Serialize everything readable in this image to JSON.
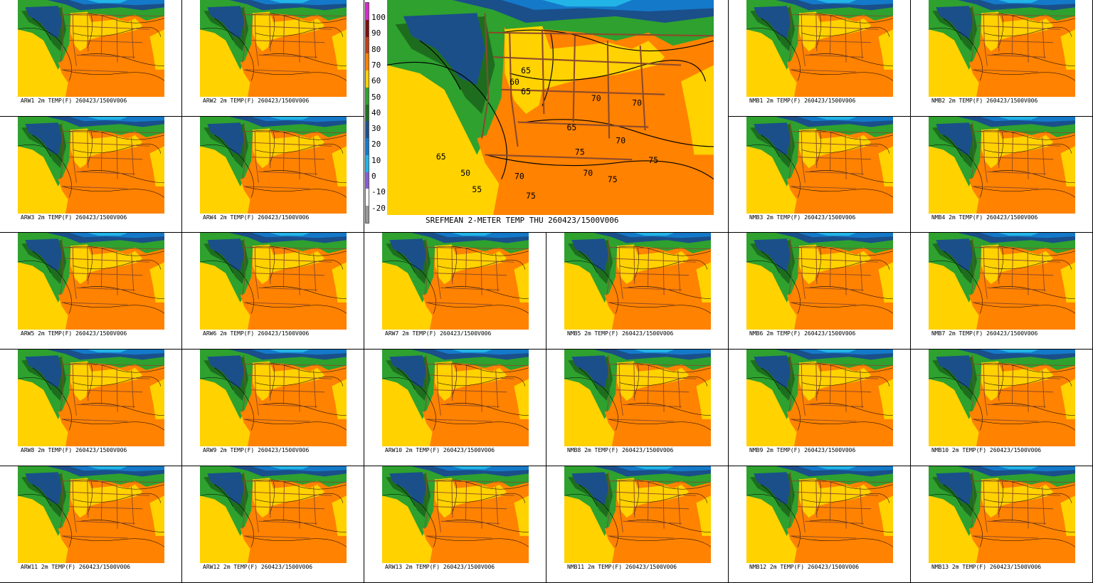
{
  "colors": {
    "c100": "#d52ac9",
    "c90": "#7a0f0f",
    "c80": "#b8401a",
    "c70": "#ff8200",
    "c60": "#ffd200",
    "c50": "#2ea12e",
    "c40": "#1e6d1e",
    "c30": "#1a4f8a",
    "c20": "#1479c8",
    "c10": "#22b4e6",
    "c0": "#8a5cd6",
    "cm10": "#ffffff",
    "cm20": "#9a9a9a",
    "borders": "#8b4a2b"
  },
  "legend": {
    "labels": [
      "100",
      "90",
      "80",
      "70",
      "60",
      "50",
      "40",
      "30",
      "20",
      "10",
      "0",
      "-10",
      "-20"
    ]
  },
  "mean": {
    "caption": "SREFMEAN 2-METER TEMP THU 260423/1500V006"
  },
  "members": [
    {
      "caption": "ARW1 2m TEMP(F) 260423/1500V006"
    },
    {
      "caption": "ARW2 2m TEMP(F) 260423/1500V006"
    },
    {
      "caption": "NMB1 2m TEMP(F) 260423/1500V006"
    },
    {
      "caption": "NMB2 2m TEMP(F) 260423/1500V006"
    },
    {
      "caption": "ARW3 2m TEMP(F) 260423/1500V006"
    },
    {
      "caption": "ARW4 2m TEMP(F) 260423/1500V006"
    },
    {
      "caption": "NMB3 2m TEMP(F) 260423/1500V006"
    },
    {
      "caption": "NMB4 2m TEMP(F) 260423/1500V006"
    },
    {
      "caption": "ARW5 2m TEMP(F) 260423/1500V006"
    },
    {
      "caption": "ARW6 2m TEMP(F) 260423/1500V006"
    },
    {
      "caption": "ARW7 2m TEMP(F) 260423/1500V006"
    },
    {
      "caption": "NMB5 2m TEMP(F) 260423/1500V006"
    },
    {
      "caption": "NMB6 2m TEMP(F) 260423/1500V006"
    },
    {
      "caption": "NMB7 2m TEMP(F) 260423/1500V006"
    },
    {
      "caption": "ARW8 2m TEMP(F) 260423/1500V006"
    },
    {
      "caption": "ARW9 2m TEMP(F) 260423/1500V006"
    },
    {
      "caption": "ARW10 2m TEMP(F) 260423/1500V006"
    },
    {
      "caption": "NMB8 2m TEMP(F) 260423/1500V006"
    },
    {
      "caption": "NMB9 2m TEMP(F) 260423/1500V006"
    },
    {
      "caption": "NMB10 2m TEMP(F) 260423/1500V006"
    },
    {
      "caption": "ARW11 2m TEMP(F) 260423/1500V006"
    },
    {
      "caption": "ARW12 2m TEMP(F) 260423/1500V006"
    },
    {
      "caption": "ARW13 2m TEMP(F) 260423/1500V006"
    },
    {
      "caption": "NMB11 2m TEMP(F) 260423/1500V006"
    },
    {
      "caption": "NMB12 2m TEMP(F) 260423/1500V006"
    },
    {
      "caption": "NMB13 2m TEMP(F) 260423/1500V006"
    }
  ],
  "mean_contour_labels": [
    "65",
    "60",
    "65",
    "70",
    "65",
    "75",
    "70",
    "70",
    "75",
    "65",
    "50",
    "55",
    "70",
    "75",
    "70",
    "75"
  ]
}
